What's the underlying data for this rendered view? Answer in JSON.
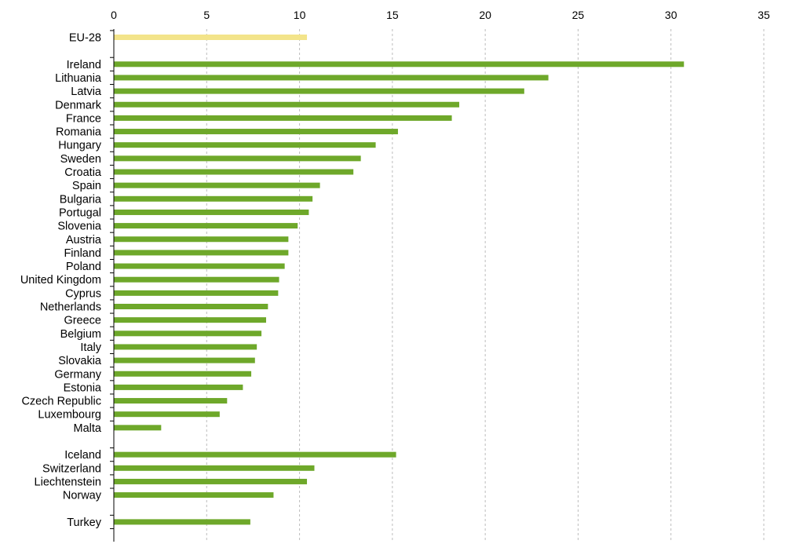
{
  "chart_data": {
    "type": "bar",
    "orientation": "horizontal",
    "title": "",
    "xlabel": "",
    "ylabel": "",
    "xlim": [
      0,
      35
    ],
    "x_ticks": [
      0,
      5,
      10,
      15,
      20,
      25,
      30,
      35
    ],
    "x_axis_position": "top",
    "grid": true,
    "colors": {
      "default": "#6ea82a",
      "highlight": "#f3e48a"
    },
    "groups": [
      {
        "items": [
          {
            "label": "EU-28",
            "value": 10.4,
            "highlight": true
          }
        ]
      },
      {
        "items": [
          {
            "label": "Ireland",
            "value": 30.7
          },
          {
            "label": "Lithuania",
            "value": 23.4
          },
          {
            "label": "Latvia",
            "value": 22.1
          },
          {
            "label": "Denmark",
            "value": 18.6
          },
          {
            "label": "France",
            "value": 18.2
          },
          {
            "label": "Romania",
            "value": 15.3
          },
          {
            "label": "Hungary",
            "value": 14.1
          },
          {
            "label": "Sweden",
            "value": 13.3
          },
          {
            "label": "Croatia",
            "value": 12.9
          },
          {
            "label": "Spain",
            "value": 11.1
          },
          {
            "label": "Bulgaria",
            "value": 10.7
          },
          {
            "label": "Portugal",
            "value": 10.5
          },
          {
            "label": "Slovenia",
            "value": 9.9
          },
          {
            "label": "Austria",
            "value": 9.4
          },
          {
            "label": "Finland",
            "value": 9.4
          },
          {
            "label": "Poland",
            "value": 9.2
          },
          {
            "label": "United Kingdom",
            "value": 8.9
          },
          {
            "label": "Cyprus",
            "value": 8.85
          },
          {
            "label": "Netherlands",
            "value": 8.3
          },
          {
            "label": "Greece",
            "value": 8.2
          },
          {
            "label": "Belgium",
            "value": 7.95
          },
          {
            "label": "Italy",
            "value": 7.7
          },
          {
            "label": "Slovakia",
            "value": 7.6
          },
          {
            "label": "Germany",
            "value": 7.4
          },
          {
            "label": "Estonia",
            "value": 6.95
          },
          {
            "label": "Czech Republic",
            "value": 6.1
          },
          {
            "label": "Luxembourg",
            "value": 5.7
          },
          {
            "label": "Malta",
            "value": 2.55
          }
        ]
      },
      {
        "items": [
          {
            "label": "Iceland",
            "value": 15.2
          },
          {
            "label": "Switzerland",
            "value": 10.8
          },
          {
            "label": "Liechtenstein",
            "value": 10.4
          },
          {
            "label": "Norway",
            "value": 8.6
          }
        ]
      },
      {
        "items": [
          {
            "label": "Turkey",
            "value": 7.35
          }
        ]
      }
    ]
  }
}
